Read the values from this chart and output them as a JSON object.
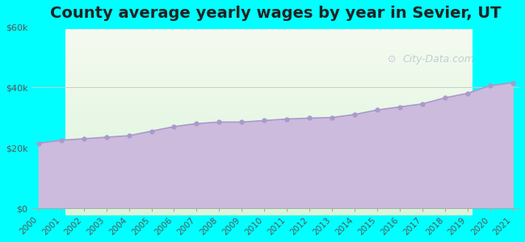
{
  "title": "County average yearly wages by year in Sevier, UT",
  "years": [
    2000,
    2001,
    2002,
    2003,
    2004,
    2005,
    2006,
    2007,
    2008,
    2009,
    2010,
    2011,
    2012,
    2013,
    2014,
    2015,
    2016,
    2017,
    2018,
    2019,
    2020,
    2021
  ],
  "wages": [
    21500,
    22500,
    23000,
    23500,
    24000,
    25500,
    27000,
    28000,
    28500,
    28500,
    29000,
    29500,
    29800,
    30000,
    31000,
    32500,
    33500,
    34500,
    36500,
    38000,
    40500,
    41500
  ],
  "ylim": [
    0,
    60000
  ],
  "yticks": [
    0,
    20000,
    40000,
    60000
  ],
  "ytick_labels": [
    "$0",
    "$20k",
    "$40k",
    "$60k"
  ],
  "background_color": "#00FFFF",
  "plot_bg_top_color": "#f0f7e8",
  "plot_bg_bottom_color": "#e8f8e8",
  "fill_color": "#ccbbdd",
  "line_color": "#aa99cc",
  "marker_color": "#aa99cc",
  "watermark": "City-Data.com",
  "title_fontsize": 14,
  "tick_fontsize": 8
}
